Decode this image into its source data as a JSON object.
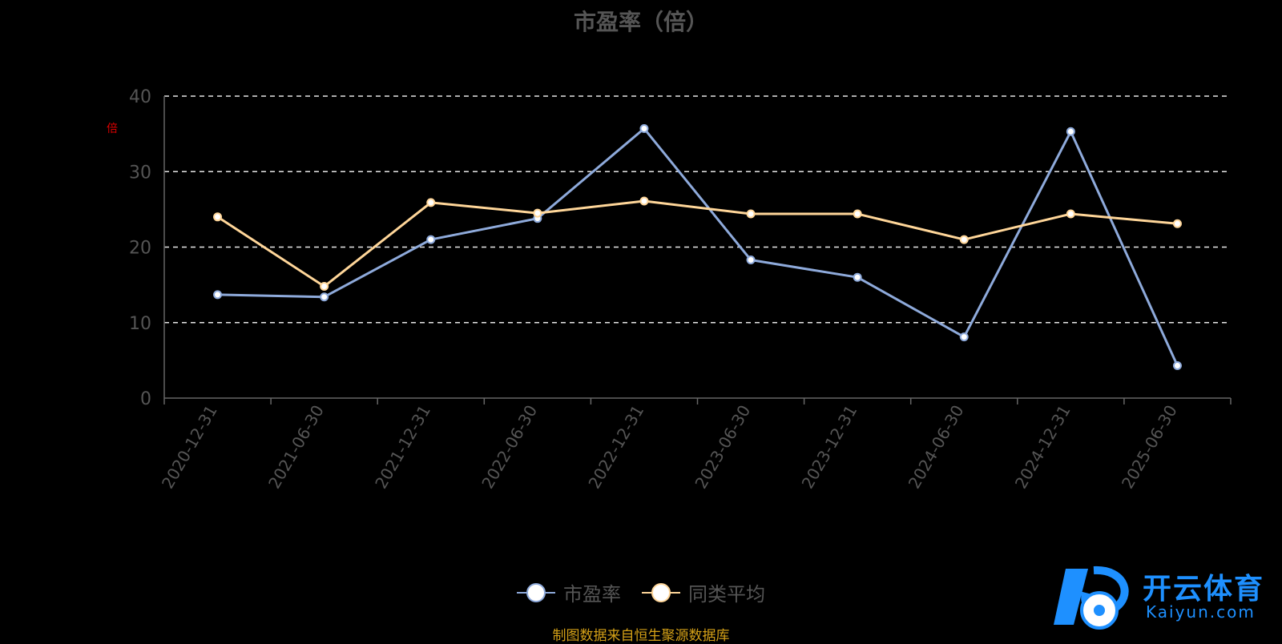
{
  "chart_data": {
    "type": "line",
    "title": "市盈率（倍）",
    "categories": [
      "2020-12-31",
      "2021-06-30",
      "2021-12-31",
      "2022-06-30",
      "2022-12-31",
      "2023-06-30",
      "2023-12-31",
      "2024-06-30",
      "2024-12-31",
      "2025-06-30"
    ],
    "series": [
      {
        "name": "市盈率",
        "color": "#8eaadb",
        "values": [
          13.7,
          13.4,
          21.0,
          23.8,
          35.7,
          18.3,
          16.0,
          8.1,
          35.3,
          4.3
        ]
      },
      {
        "name": "同类平均",
        "color": "#ffd699",
        "values": [
          24.0,
          14.8,
          25.9,
          24.5,
          26.1,
          24.4,
          24.4,
          21.0,
          24.4,
          23.1
        ]
      }
    ],
    "yticks": [
      0,
      10,
      20,
      30,
      40
    ],
    "ylim": [
      0,
      40
    ],
    "grid": true,
    "grid_style": "dashed",
    "legend_position": "bottom-center",
    "unit_mark": "倍"
  },
  "legend": {
    "items": [
      "市盈率",
      "同类平均"
    ]
  },
  "source_note": "制图数据来自恒生聚源数据库",
  "watermark": {
    "cn": "开云体育",
    "en": "Kaiyun.com"
  }
}
